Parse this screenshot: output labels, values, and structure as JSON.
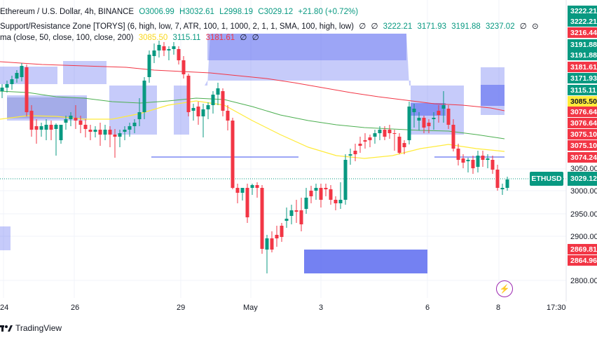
{
  "legend": {
    "symbol": "Ethereum / U.S. Dollar, 4h, BINANCE",
    "open": "O3006.99",
    "high": "H3032.61",
    "low": "L2998.19",
    "close": "C3029.12",
    "change": "+21.80 (+0.72%)",
    "sr_label": "Support/Resistance Zone [TORYS] (6, high, low, 7, ATR, 100, 1, 1000, 2, 1, 1, SMA, 100, high, low)",
    "sr_z1": "∅",
    "sr_z2": "∅",
    "sr_v1": "3222.21",
    "sr_v2": "3171.93",
    "sr_v3": "3191.88",
    "sr_v4": "3237.02",
    "sr_z3": "∅",
    "sr_dots": "⊙",
    "ma_label": "ma (close, 50, close, 100, close, 200)",
    "ma_v1": "3085.50",
    "ma_v2": "3115.11",
    "ma_v3": "3181.61",
    "ma_z1": "∅",
    "ma_z2": "∅"
  },
  "symbol_tag": {
    "ticker": "ETHUSD",
    "price": "3029.12"
  },
  "price_axis": {
    "ticks": [
      "3050.00",
      "3000.00",
      "2950.00",
      "2900.00",
      "2800.00"
    ],
    "tags": [
      {
        "label": "3222.21",
        "color": "#089981"
      },
      {
        "label": "3222.21",
        "color": "#089981"
      },
      {
        "label": "3216.44",
        "color": "#f23645"
      },
      {
        "label": "3191.88",
        "color": "#089981"
      },
      {
        "label": "3191.88",
        "color": "#089981"
      },
      {
        "label": "3181.61",
        "color": "#f23645"
      },
      {
        "label": "3171.93",
        "color": "#089981"
      },
      {
        "label": "3115.11",
        "color": "#089981"
      },
      {
        "label": "3085.50",
        "color": "#ffeb3b"
      },
      {
        "label": "3076.64",
        "color": "#f23645"
      },
      {
        "label": "3076.64",
        "color": "#f23645"
      },
      {
        "label": "3075.10",
        "color": "#f23645"
      },
      {
        "label": "3075.10",
        "color": "#f23645"
      },
      {
        "label": "3074.24",
        "color": "#f23645"
      },
      {
        "label": "2869.81",
        "color": "#f23645"
      },
      {
        "label": "2864.96",
        "color": "#f23645"
      }
    ]
  },
  "time_axis": {
    "labels": [
      "24",
      "26",
      "29",
      "May",
      "3",
      "6",
      "8",
      "17:30"
    ]
  },
  "footer": {
    "brand": "TradingView"
  },
  "colors": {
    "up": "#089981",
    "down": "#f23645",
    "zone": "#5c6bf0",
    "ma50": "#ffeb3b",
    "ma100": "#4caf50",
    "ma200": "#f23645"
  }
}
